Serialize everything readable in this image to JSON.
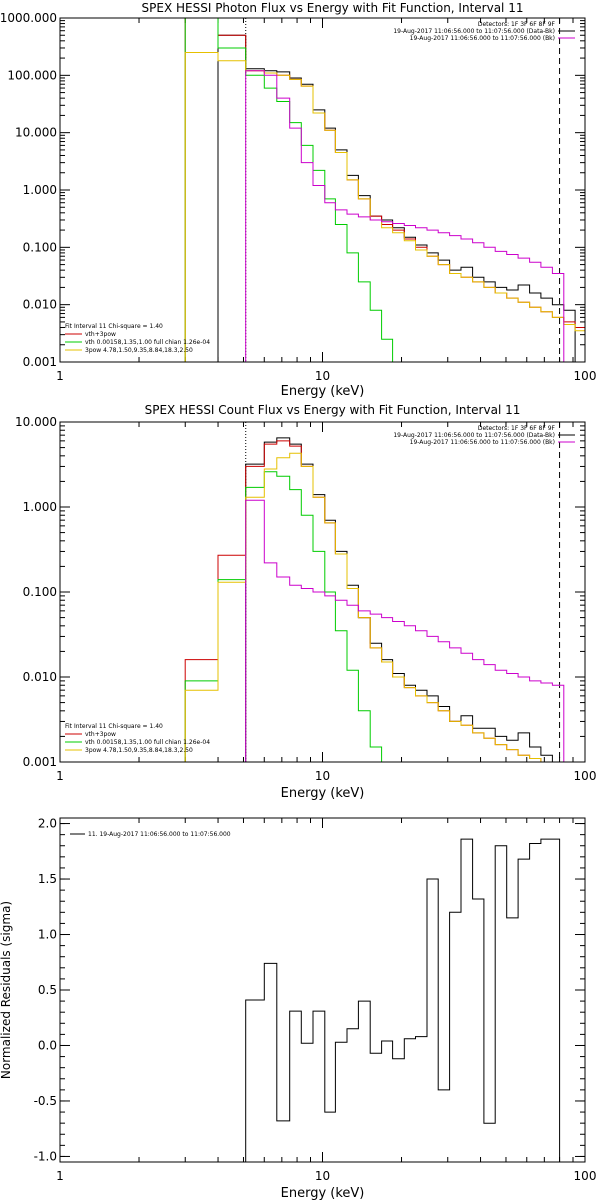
{
  "chart_data": [
    {
      "type": "line",
      "title": "SPEX HESSI Photon Flux vs Energy with Fit Function, Interval 11",
      "xlabel": "Energy (keV)",
      "ylabel": "",
      "xscale": "log",
      "yscale": "log",
      "xlim": [
        1,
        100
      ],
      "ylim": [
        0.001,
        1000
      ],
      "x_ticks": [
        1,
        10,
        100
      ],
      "x_tick_labels": [
        "1",
        "10",
        "100"
      ],
      "y_ticks": [
        0.001,
        0.01,
        0.1,
        1,
        10,
        100,
        1000
      ],
      "y_tick_labels": [
        "0.001",
        "0.010",
        "0.100",
        "1.000",
        "10.000",
        "100.000",
        "1000.000"
      ],
      "vlines": [
        {
          "x": 5.1,
          "style": "dotted",
          "color": "#000000"
        },
        {
          "x": 80,
          "style": "dashed",
          "color": "#000000"
        }
      ],
      "header_lines": [
        "Detectors: 1F 3F 6F 8F 9F",
        "19-Aug-2017 11:06:56.000 to 11:07:56.000 (Data-Bk)",
        "19-Aug-2017 11:06:56.000 to 11:07:56.000 (Bk)"
      ],
      "legend_lines": [
        "Fit Interval 11    Chi-square = 1.40",
        "vth+3pow",
        "vth 0.00158,1.35,1.00  full chian 1.26e-04",
        "3pow 4.78,1.50,9.35,8.84,18.3,2.50"
      ],
      "legend_colors": [
        "#000000",
        "#cc0000",
        "#00cc00",
        "#e6c000"
      ],
      "edges": [
        3.0,
        4.0,
        5.1,
        6.0,
        6.7,
        7.5,
        8.3,
        9.2,
        10.2,
        11.2,
        12.4,
        13.7,
        15.2,
        16.8,
        18.5,
        20.5,
        22.6,
        25.0,
        27.6,
        30.5,
        33.7,
        37.3,
        41.2,
        45.5,
        50.3,
        55.6,
        61.5,
        67.9,
        75.1,
        83.0,
        91.7,
        100.0
      ],
      "series": [
        {
          "color": "#000000",
          "values": [
            null,
            500,
            130,
            120,
            115,
            90,
            70,
            25,
            12,
            5,
            1.8,
            0.8,
            0.35,
            0.3,
            0.22,
            0.15,
            0.11,
            0.08,
            0.06,
            0.04,
            0.045,
            0.03,
            0.025,
            0.02,
            0.018,
            0.022,
            0.016,
            0.013,
            0.01,
            0.008,
            null
          ]
        },
        {
          "color": "#cc0000",
          "values": [
            1000,
            500,
            120,
            110,
            100,
            85,
            65,
            22,
            11,
            4.5,
            1.5,
            0.7,
            0.35,
            0.25,
            0.2,
            0.14,
            0.1,
            0.07,
            0.05,
            0.035,
            0.03,
            0.025,
            0.02,
            0.016,
            0.013,
            0.011,
            0.009,
            0.0075,
            0.006,
            0.005,
            0.004
          ]
        },
        {
          "color": "#00cc00",
          "values": [
            1000,
            300,
            100,
            60,
            35,
            15,
            6,
            2.2,
            0.7,
            0.25,
            0.08,
            0.025,
            0.008,
            0.0025,
            0.0008,
            null,
            null,
            null,
            null,
            null,
            null,
            null,
            null,
            null,
            null,
            null,
            null,
            null,
            null,
            null,
            null
          ]
        },
        {
          "color": "#e6c000",
          "values": [
            250,
            180,
            120,
            110,
            100,
            85,
            65,
            22,
            11,
            4.5,
            1.5,
            0.7,
            0.3,
            0.22,
            0.18,
            0.13,
            0.09,
            0.07,
            0.05,
            0.035,
            0.03,
            0.025,
            0.02,
            0.016,
            0.013,
            0.011,
            0.009,
            0.0075,
            0.006,
            0.0045,
            0.0035
          ]
        },
        {
          "color": "#cc00cc",
          "values": [
            null,
            null,
            120,
            100,
            40,
            12,
            3,
            1.2,
            0.6,
            0.45,
            0.38,
            0.34,
            0.3,
            0.28,
            0.26,
            0.24,
            0.22,
            0.2,
            0.18,
            0.16,
            0.14,
            0.12,
            0.1,
            0.085,
            0.075,
            0.065,
            0.055,
            0.045,
            0.035,
            null,
            null
          ]
        }
      ]
    },
    {
      "type": "line",
      "title": "SPEX HESSI Count Flux vs Energy with Fit Function, Interval 11",
      "xlabel": "Energy (keV)",
      "ylabel": "",
      "xscale": "log",
      "yscale": "log",
      "xlim": [
        1,
        100
      ],
      "ylim": [
        0.001,
        10
      ],
      "x_ticks": [
        1,
        10,
        100
      ],
      "x_tick_labels": [
        "1",
        "10",
        "100"
      ],
      "y_ticks": [
        0.001,
        0.01,
        0.1,
        1,
        10
      ],
      "y_tick_labels": [
        "0.001",
        "0.010",
        "0.100",
        "1.000",
        "10.000"
      ],
      "vlines": [
        {
          "x": 5.1,
          "style": "dotted",
          "color": "#000000"
        },
        {
          "x": 80,
          "style": "dashed",
          "color": "#000000"
        }
      ],
      "header_lines": [
        "Detectors: 1F 3F 6F 8F 9F",
        "19-Aug-2017 11:06:56.000 to 11:07:56.000 (Data-Bk)",
        "19-Aug-2017 11:06:56.000 to 11:07:56.000 (Bk)"
      ],
      "legend_lines": [
        "Fit Interval 11    Chi-square = 1.40",
        "vth+3pow",
        "vth 0.00158,1.35,1.00  full chian 1.26e-04",
        "3pow 4.78,1.50,9.35,8.84,18.3,2.50"
      ],
      "legend_colors": [
        "#000000",
        "#cc0000",
        "#00cc00",
        "#e6c000"
      ],
      "edges": [
        3.0,
        4.0,
        5.1,
        6.0,
        6.7,
        7.5,
        8.3,
        9.2,
        10.2,
        11.2,
        12.4,
        13.7,
        15.2,
        16.8,
        18.5,
        20.5,
        22.6,
        25.0,
        27.6,
        30.5,
        33.7,
        37.3,
        41.2,
        45.5,
        50.3,
        55.6,
        61.5,
        67.9,
        75.1,
        83.0,
        91.7,
        100.0
      ],
      "series": [
        {
          "color": "#000000",
          "values": [
            null,
            null,
            3.2,
            5.8,
            6.5,
            5.5,
            3.2,
            1.4,
            0.7,
            0.3,
            0.12,
            0.05,
            0.025,
            0.016,
            0.011,
            0.008,
            0.007,
            0.006,
            0.0045,
            0.003,
            0.0035,
            0.0025,
            0.0025,
            0.002,
            0.0018,
            0.0022,
            0.0015,
            0.0012,
            0.001,
            null,
            null
          ]
        },
        {
          "color": "#cc0000",
          "values": [
            0.016,
            0.27,
            3.0,
            5.5,
            6.0,
            5.2,
            3.0,
            1.3,
            0.65,
            0.28,
            0.11,
            0.05,
            0.022,
            0.015,
            0.01,
            0.0075,
            0.006,
            0.005,
            0.004,
            0.003,
            0.0027,
            0.0022,
            0.0019,
            0.0016,
            0.0014,
            0.0012,
            0.0011,
            null,
            null,
            null,
            null
          ]
        },
        {
          "color": "#00cc00",
          "values": [
            0.009,
            0.14,
            1.7,
            2.6,
            2.3,
            1.6,
            0.8,
            0.3,
            0.1,
            0.035,
            0.012,
            0.004,
            0.0015,
            0.0008,
            null,
            null,
            null,
            null,
            null,
            null,
            null,
            null,
            null,
            null,
            null,
            null,
            null,
            null,
            null,
            null,
            null
          ]
        },
        {
          "color": "#e6c000",
          "values": [
            0.007,
            0.13,
            1.3,
            2.8,
            3.8,
            4.3,
            3.0,
            1.3,
            0.65,
            0.28,
            0.11,
            0.05,
            0.022,
            0.015,
            0.01,
            0.0075,
            0.006,
            0.005,
            0.004,
            0.003,
            0.0027,
            0.0022,
            0.0019,
            0.0016,
            0.0014,
            0.0012,
            0.0011,
            null,
            null,
            null,
            null
          ]
        },
        {
          "color": "#cc00cc",
          "values": [
            null,
            null,
            1.2,
            0.22,
            0.15,
            0.12,
            0.11,
            0.1,
            0.09,
            0.08,
            0.07,
            0.06,
            0.055,
            0.05,
            0.045,
            0.04,
            0.035,
            0.03,
            0.026,
            0.022,
            0.019,
            0.016,
            0.014,
            0.012,
            0.011,
            0.01,
            0.009,
            0.0085,
            0.008,
            null,
            null
          ]
        }
      ]
    },
    {
      "type": "line",
      "title": "",
      "xlabel": "Energy (keV)",
      "ylabel": "Normalized Residuals (sigma)",
      "xscale": "log",
      "yscale": "linear",
      "xlim": [
        1,
        100
      ],
      "ylim": [
        -1.05,
        2.05
      ],
      "x_ticks": [
        1,
        10,
        100
      ],
      "x_tick_labels": [
        "1",
        "10",
        "100"
      ],
      "y_ticks": [
        -1.0,
        -0.5,
        0.0,
        0.5,
        1.0,
        1.5,
        2.0
      ],
      "y_tick_labels": [
        "-1.0",
        "-0.5",
        "0.0",
        "0.5",
        "1.0",
        "1.5",
        "2.0"
      ],
      "legend_text": "11. 19-Aug-2017 11:06:56.000 to 11:07:56.000",
      "edges": [
        5.1,
        6.0,
        6.7,
        7.5,
        8.3,
        9.2,
        10.2,
        11.2,
        12.4,
        13.7,
        15.2,
        16.8,
        18.5,
        20.5,
        22.6,
        25.0,
        27.6,
        30.5,
        33.7,
        37.3,
        41.2,
        45.5,
        50.3,
        55.6,
        61.5,
        67.9,
        75.1,
        80.0
      ],
      "series": [
        {
          "color": "#000000",
          "values": [
            0.41,
            0.74,
            -0.68,
            0.31,
            0.02,
            0.31,
            -0.6,
            0.03,
            0.15,
            0.4,
            -0.07,
            0.04,
            -0.12,
            0.06,
            0.08,
            1.5,
            -0.4,
            1.2,
            1.86,
            1.32,
            -0.7,
            1.8,
            1.15,
            1.68,
            1.82,
            1.86,
            1.86
          ]
        }
      ]
    }
  ]
}
